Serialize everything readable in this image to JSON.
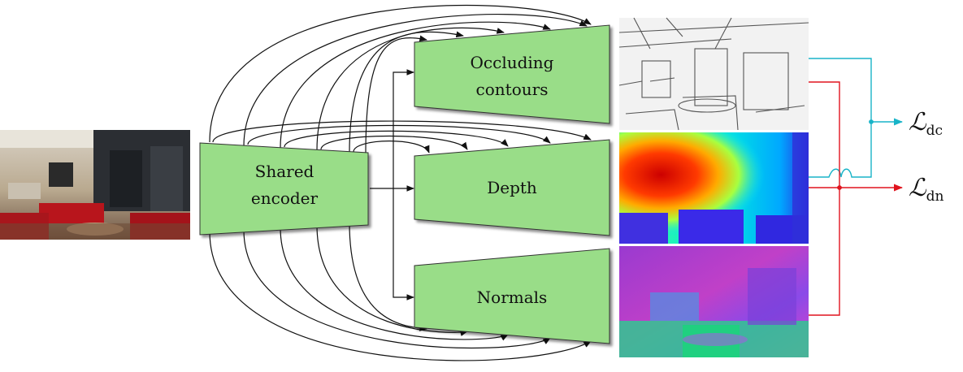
{
  "nodes": {
    "encoder": {
      "line1": "Shared",
      "line2": "encoder",
      "fill": "#99dd88"
    },
    "occluding": {
      "line1": "Occluding",
      "line2": "contours",
      "fill": "#99dd88"
    },
    "depth": {
      "label": "Depth",
      "fill": "#99dd88"
    },
    "normals": {
      "label": "Normals",
      "fill": "#99dd88"
    }
  },
  "losses": {
    "dc": {
      "symbol": "ℒ",
      "subscript": "dc",
      "color": "#19b4c8"
    },
    "dn": {
      "symbol": "ℒ",
      "subscript": "dn",
      "color": "#e0141e"
    }
  }
}
